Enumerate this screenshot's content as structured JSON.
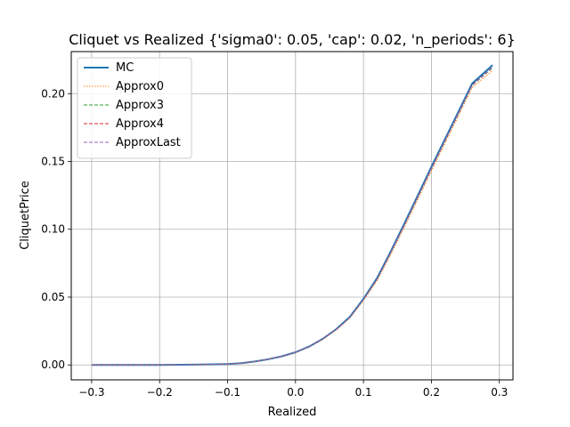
{
  "chart_data": {
    "type": "line",
    "title": "Cliquet vs Realized {'sigma0': 0.05, 'cap': 0.02, 'n_periods': 6}",
    "xlabel": "Realized",
    "ylabel": "CliquetPrice",
    "xlim": [
      -0.33,
      0.32
    ],
    "ylim": [
      -0.011,
      0.231
    ],
    "grid": true,
    "legend_position": "top-left",
    "x_ticks": [
      -0.3,
      -0.2,
      -0.1,
      0.0,
      0.1,
      0.2,
      0.3
    ],
    "x_tick_labels": [
      "−0.3",
      "−0.2",
      "−0.1",
      "0.0",
      "0.1",
      "0.2",
      "0.3"
    ],
    "y_ticks": [
      0.0,
      0.05,
      0.1,
      0.15,
      0.2
    ],
    "y_tick_labels": [
      "0.00",
      "0.05",
      "0.10",
      "0.15",
      "0.20"
    ],
    "x": [
      -0.3,
      -0.25,
      -0.2,
      -0.15,
      -0.1,
      -0.08,
      -0.06,
      -0.04,
      -0.02,
      0.0,
      0.02,
      0.04,
      0.06,
      0.08,
      0.1,
      0.12,
      0.14,
      0.16,
      0.18,
      0.2,
      0.22,
      0.24,
      0.26,
      0.29
    ],
    "series": [
      {
        "name": "MC",
        "color": "#1f77b4",
        "dash": "solid",
        "values": [
          0.0,
          0.0,
          0.0,
          0.0002,
          0.0006,
          0.0013,
          0.0025,
          0.0042,
          0.0064,
          0.0093,
          0.0135,
          0.0192,
          0.0264,
          0.0355,
          0.0487,
          0.064,
          0.0835,
          0.104,
          0.125,
          0.146,
          0.1665,
          0.187,
          0.2075,
          0.221
        ]
      },
      {
        "name": "Approx0",
        "color": "#ff7f0e",
        "dash": "dotted",
        "values": [
          0.0,
          0.0,
          0.0,
          0.0002,
          0.0006,
          0.0013,
          0.0025,
          0.0042,
          0.0064,
          0.0092,
          0.0133,
          0.0188,
          0.0258,
          0.0346,
          0.0475,
          0.0622,
          0.0812,
          0.1015,
          0.1222,
          0.143,
          0.1635,
          0.184,
          0.2045,
          0.217
        ]
      },
      {
        "name": "Approx3",
        "color": "#2ca02c",
        "dash": "dashed",
        "values": [
          0.0,
          0.0,
          0.0,
          0.0002,
          0.0006,
          0.0013,
          0.0025,
          0.0042,
          0.0064,
          0.0093,
          0.0134,
          0.019,
          0.0261,
          0.035,
          0.0481,
          0.0631,
          0.0824,
          0.1028,
          0.1236,
          0.1445,
          0.165,
          0.1855,
          0.206,
          0.219
        ]
      },
      {
        "name": "Approx4",
        "color": "#d62728",
        "dash": "dashed",
        "values": [
          0.0,
          0.0,
          0.0,
          0.0002,
          0.0006,
          0.0013,
          0.0025,
          0.0042,
          0.0064,
          0.0093,
          0.0134,
          0.0191,
          0.0262,
          0.0352,
          0.0483,
          0.0634,
          0.0828,
          0.1032,
          0.1241,
          0.145,
          0.1655,
          0.186,
          0.2065,
          0.2195
        ]
      },
      {
        "name": "ApproxLast",
        "color": "#9467bd",
        "dash": "dashed",
        "values": [
          0.0,
          0.0,
          0.0,
          0.0002,
          0.0006,
          0.0013,
          0.0025,
          0.0042,
          0.0064,
          0.0093,
          0.0134,
          0.019,
          0.0261,
          0.0351,
          0.0482,
          0.0633,
          0.0826,
          0.103,
          0.1238,
          0.1447,
          0.1652,
          0.1857,
          0.2062,
          0.2193
        ]
      }
    ]
  }
}
